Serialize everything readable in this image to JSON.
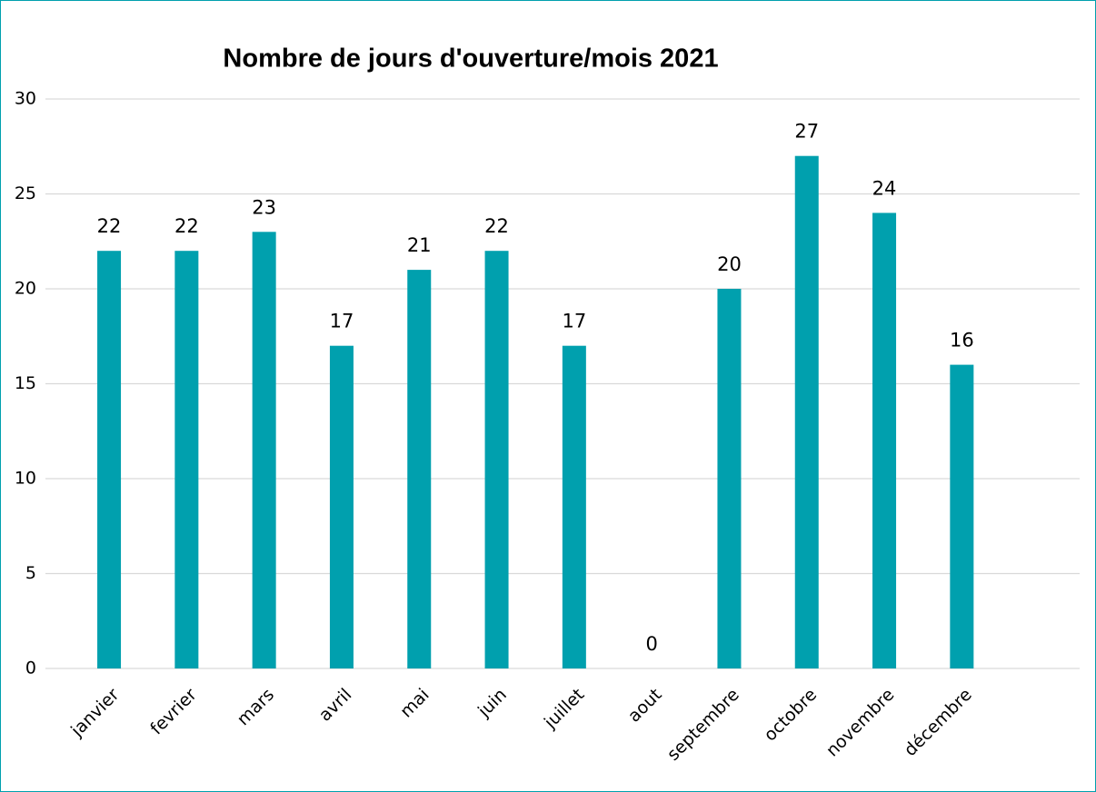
{
  "chart_data": {
    "type": "bar",
    "title": "Nombre de jours d'ouverture/mois 2021",
    "categories": [
      "janvier",
      "fevrier",
      "mars",
      "avril",
      "mai",
      "juin",
      "juillet",
      "aout",
      "septembre",
      "octobre",
      "novembre",
      "décembre"
    ],
    "values": [
      22,
      22,
      23,
      17,
      21,
      22,
      17,
      0,
      20,
      27,
      24,
      16
    ],
    "color": "#00a0ae",
    "ylim": [
      0,
      30
    ],
    "yticks": [
      0,
      5,
      10,
      15,
      20,
      25,
      30
    ],
    "grid": true
  }
}
